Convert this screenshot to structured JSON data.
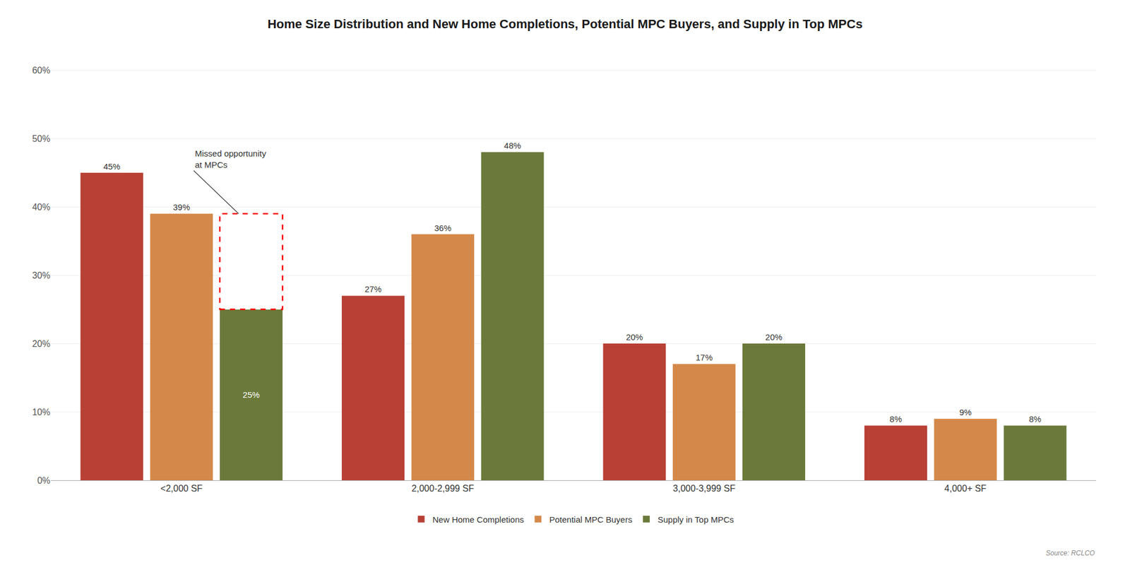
{
  "chart_data": {
    "type": "bar",
    "title": "Home Size Distribution and New Home Completions, Potential MPC Buyers, and Supply in Top MPCs",
    "categories": [
      "<2,000 SF",
      "2,000-2,999 SF",
      "3,000-3,999 SF",
      "4,000+ SF"
    ],
    "series": [
      {
        "name": "New Home Completions",
        "color": "#B84035",
        "values": [
          45,
          27,
          20,
          8
        ],
        "value_labels": [
          "45%",
          "27%",
          "20%",
          "8%"
        ]
      },
      {
        "name": "Potential MPC Buyers",
        "color": "#D4894A",
        "values": [
          39,
          36,
          17,
          9
        ],
        "value_labels": [
          "39%",
          "36%",
          "17%",
          "9%"
        ]
      },
      {
        "name": "Supply in Top MPCs",
        "color": "#6B7A3A",
        "values": [
          25,
          48,
          20,
          8
        ],
        "value_labels": [
          "25%",
          "48%",
          "20%",
          "8%"
        ]
      }
    ],
    "ylim": [
      0,
      62
    ],
    "yticks": [
      {
        "value": 0,
        "label": "0%"
      },
      {
        "value": 10,
        "label": "10%"
      },
      {
        "value": 20,
        "label": "20%"
      },
      {
        "value": 30,
        "label": "30%"
      },
      {
        "value": 40,
        "label": "40%"
      },
      {
        "value": 50,
        "label": "50%"
      },
      {
        "value": 60,
        "label": "60%"
      }
    ],
    "grid": true,
    "legend": "bottom",
    "data_labels": true,
    "annotations": [
      {
        "text": "Missed opportunity\nat MPCs",
        "category": "<2,000 SF",
        "series": "Supply in Top MPCs",
        "range": [
          25,
          39
        ]
      }
    ],
    "source": "Source: RCLCO"
  }
}
